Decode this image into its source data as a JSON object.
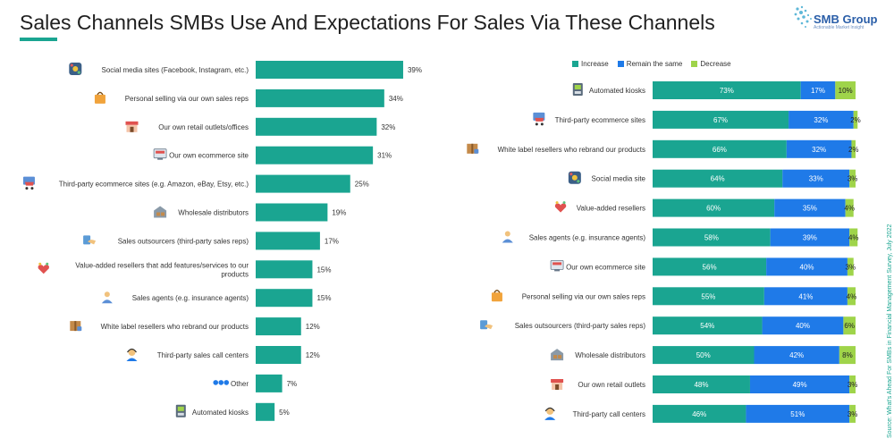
{
  "header": {
    "title": "Sales Channels SMBs Use And Expectations For Sales Via These Channels",
    "logo_text": "SMB Group",
    "logo_sub": "Actionable Market Insight"
  },
  "source": "Source: What's Ahead For SMBs in Financial Management Survey, July 2022",
  "colors": {
    "teal": "#1aa591",
    "blue": "#1f7ae8",
    "green": "#9fd44a"
  },
  "chart_data": [
    {
      "type": "bar",
      "orientation": "horizontal",
      "categories": [
        "Social media sites (Facebook, Instagram, etc.)",
        "Personal selling via our own sales reps",
        "Our own retail outlets/offices",
        "Our own ecommerce site",
        "Third-party ecommerce sites (e.g. Amazon, eBay, Etsy, etc.)",
        "Wholesale distributors",
        "Sales outsourcers (third-party sales reps)",
        "Value-added resellers that add features/services to our products",
        "Sales agents (e.g.  insurance agents)",
        "White label resellers who rebrand our products",
        "Third-party sales call centers",
        "Other",
        "Automated kiosks"
      ],
      "values": [
        39,
        34,
        32,
        31,
        25,
        19,
        17,
        15,
        15,
        12,
        12,
        7,
        5
      ],
      "value_labels": [
        "39%",
        "34%",
        "32%",
        "31%",
        "25%",
        "19%",
        "17%",
        "15%",
        "15%",
        "12%",
        "12%",
        "7%",
        "5%"
      ],
      "icons": [
        "social-media-icon",
        "shopping-bag-icon",
        "storefront-icon",
        "ecommerce-icon",
        "ecommerce-cart-icon",
        "warehouse-icon",
        "handshake-icon",
        "reseller-icon",
        "agent-icon",
        "package-icon",
        "headset-icon",
        "dots-icon",
        "kiosk-icon"
      ],
      "xlim": [
        0,
        40
      ]
    },
    {
      "type": "bar",
      "orientation": "horizontal",
      "stacked": true,
      "legend_position": "top",
      "categories": [
        "Automated kiosks",
        "Third-party ecommerce sites",
        "White label resellers who rebrand our products",
        "Social media site",
        "Value-added resellers",
        "Sales agents (e.g. insurance agents)",
        "Our own ecommerce site",
        "Personal selling via our own sales reps",
        "Sales outsourcers (third-party sales reps)",
        "Wholesale distributors",
        "Our own retail outlets",
        "Third-party call centers"
      ],
      "series": [
        {
          "name": "Increase",
          "values": [
            73,
            67,
            66,
            64,
            60,
            58,
            56,
            55,
            54,
            50,
            48,
            46
          ],
          "labels": [
            "73%",
            "67%",
            "66%",
            "64%",
            "60%",
            "58%",
            "56%",
            "55%",
            "54%",
            "50%",
            "48%",
            "46%"
          ]
        },
        {
          "name": "Remain the same",
          "values": [
            17,
            32,
            32,
            33,
            35,
            39,
            40,
            41,
            40,
            42,
            49,
            51
          ],
          "labels": [
            "17%",
            "32%",
            "32%",
            "33%",
            "35%",
            "39%",
            "40%",
            "41%",
            "40%",
            "42%",
            "49%",
            "51%"
          ]
        },
        {
          "name": "Decrease",
          "values": [
            10,
            2,
            2,
            3,
            4,
            4,
            3,
            4,
            6,
            8,
            3,
            3
          ],
          "labels": [
            "10%",
            "2%",
            "2%",
            "3%",
            "4%",
            "4%",
            "3%",
            "4%",
            "6%",
            "8%",
            "3%",
            "3%"
          ]
        }
      ],
      "icons": [
        "kiosk-icon",
        "ecommerce-cart-icon",
        "package-icon",
        "social-media-icon",
        "reseller-icon",
        "agent-icon",
        "ecommerce-icon",
        "shopping-bag-icon",
        "handshake-icon",
        "warehouse-icon",
        "storefront-icon",
        "headset-icon"
      ],
      "xlim": [
        0,
        100
      ]
    }
  ]
}
